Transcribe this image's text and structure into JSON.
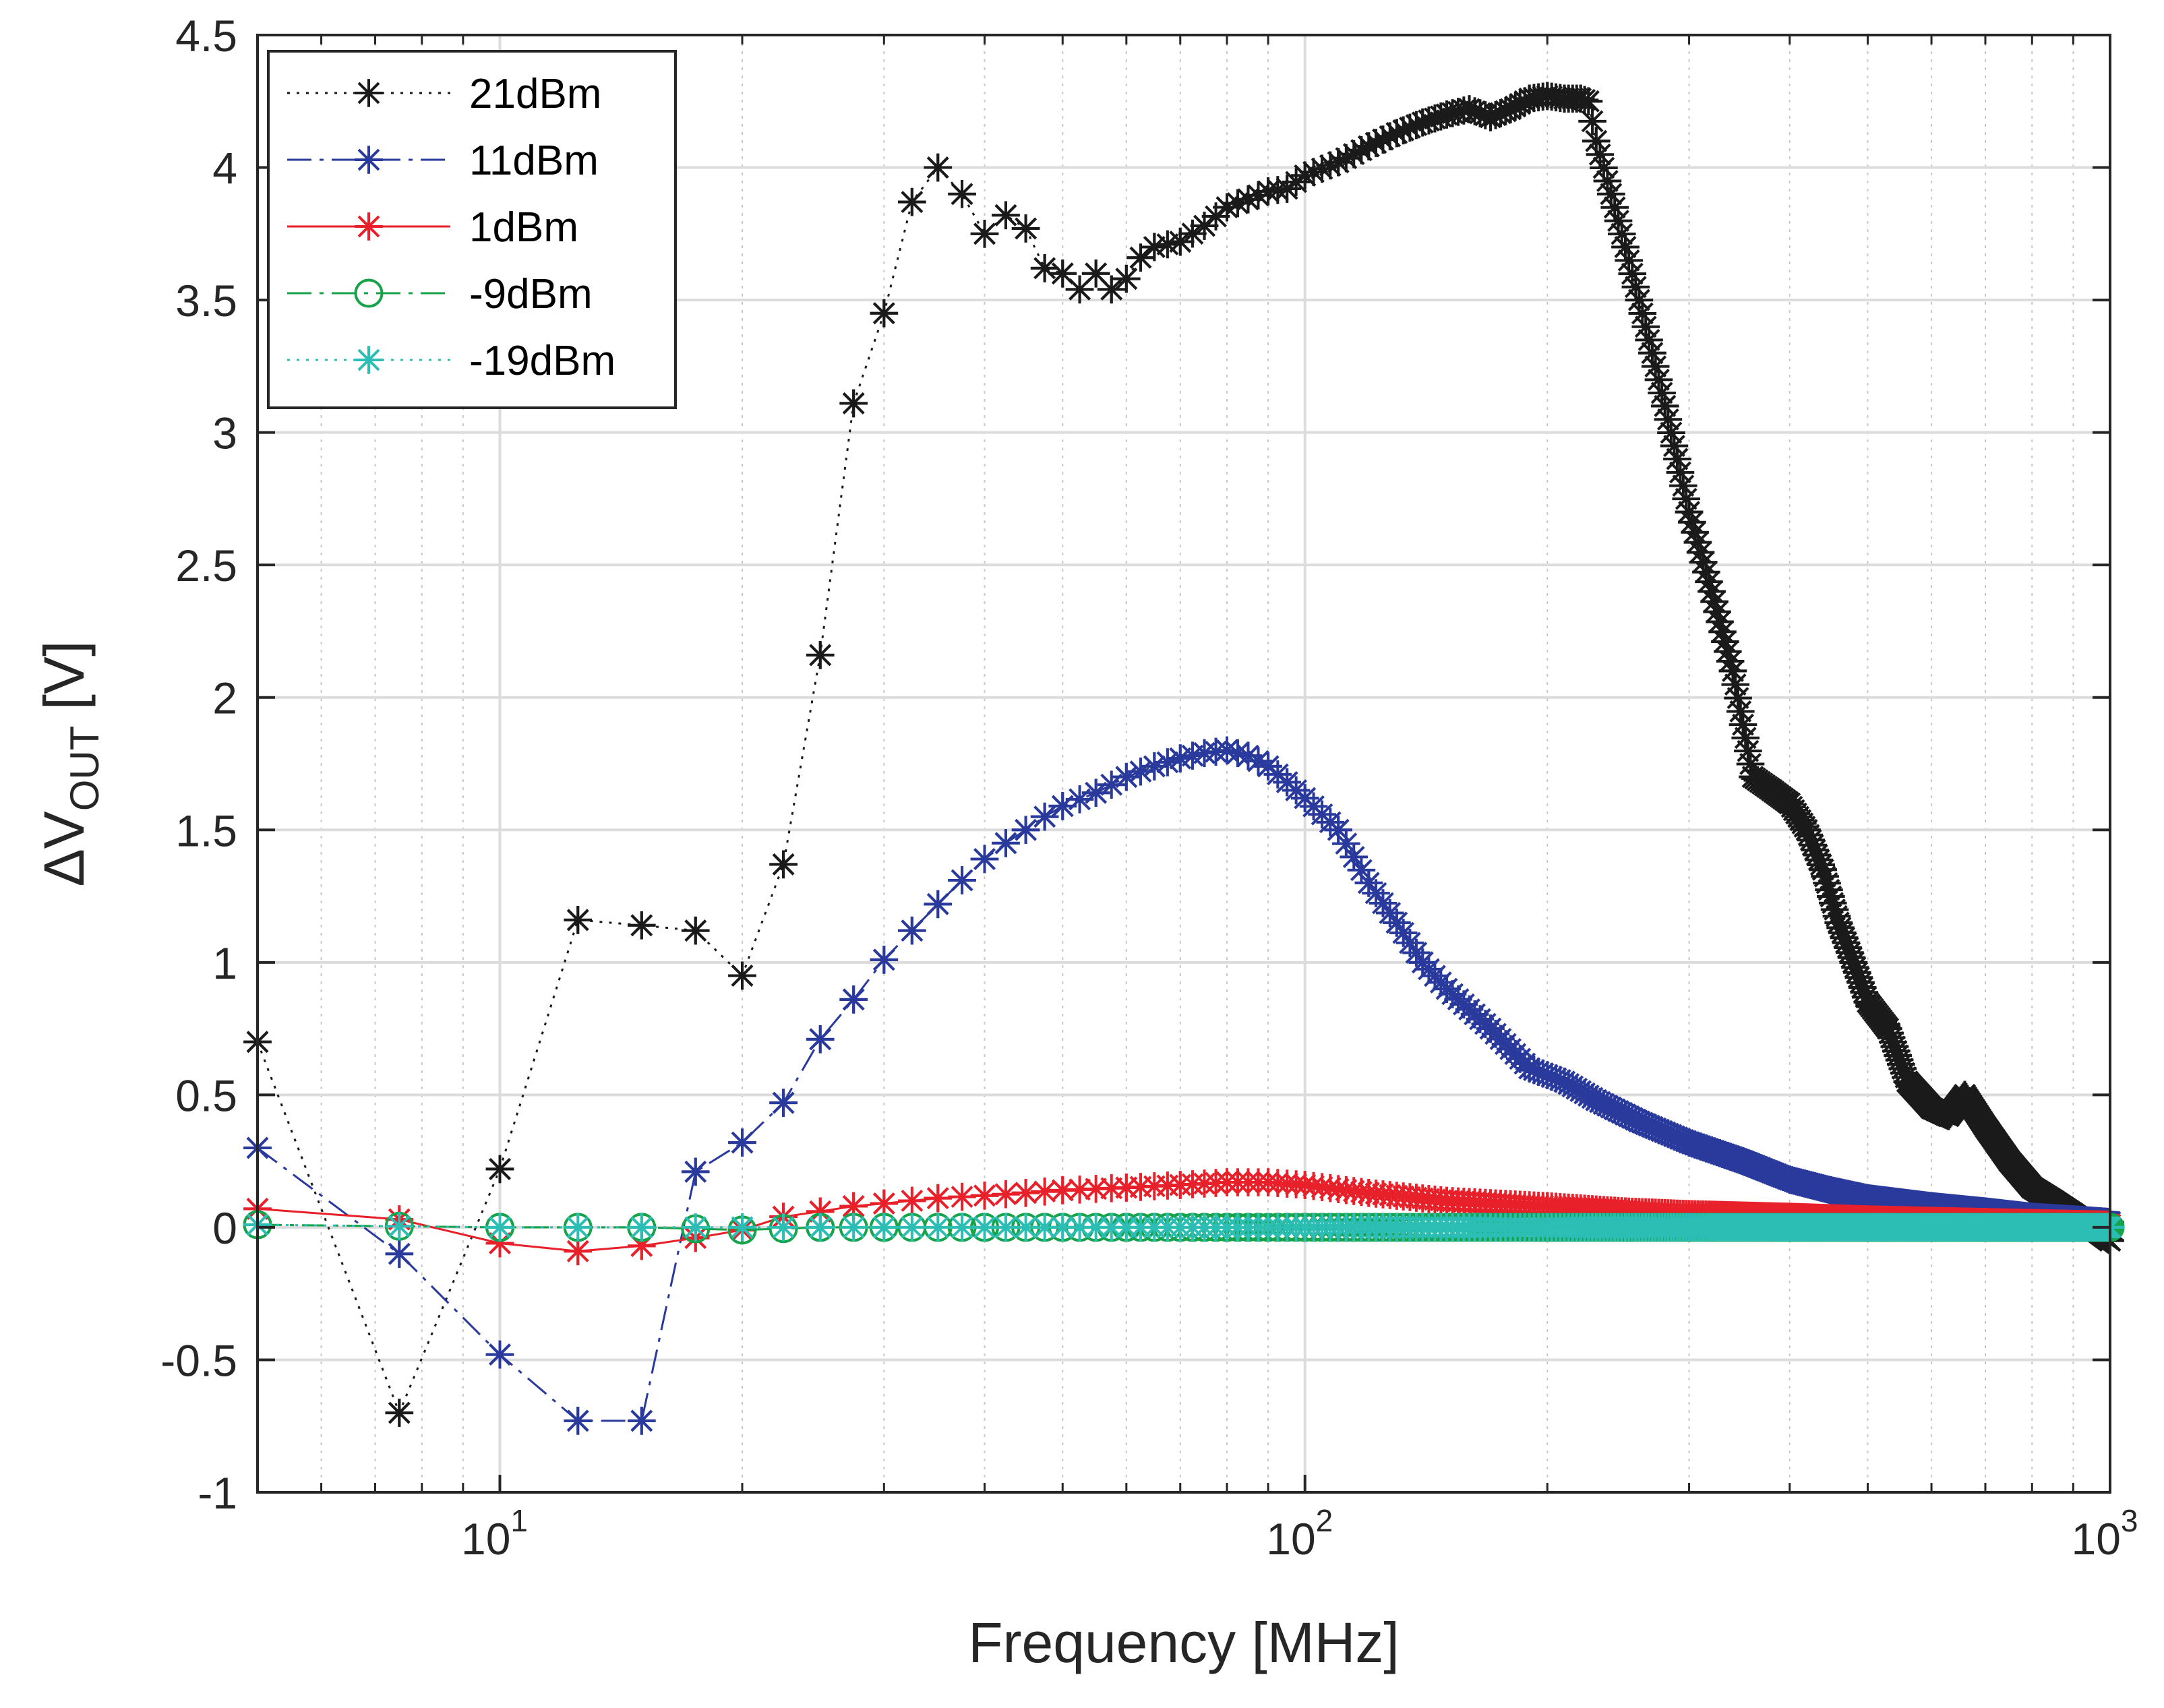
{
  "chart_data": {
    "type": "line",
    "title": "",
    "xlabel": "Frequency [MHz]",
    "ylabel": {
      "prefix": "ΔV",
      "subscript": "OUT",
      "suffix": " [V]"
    },
    "xscale": "log",
    "xlim": [
      5,
      1000
    ],
    "ylim": [
      -1,
      4.5
    ],
    "grid": true,
    "minor_grid": true,
    "legend_location": "top-left",
    "x_ticks": [
      {
        "value": 10,
        "base": "10",
        "exp": "1"
      },
      {
        "value": 100,
        "base": "10",
        "exp": "2"
      },
      {
        "value": 1000,
        "base": "10",
        "exp": "3"
      }
    ],
    "y_ticks": [
      "-1",
      "-0.5",
      "0",
      "0.5",
      "1",
      "1.5",
      "2",
      "2.5",
      "3",
      "3.5",
      "4",
      "4.5"
    ],
    "series": [
      {
        "name": "21dBm",
        "color": "#1a1a1a",
        "line_style": "dotted",
        "marker": "asterisk",
        "points": [
          [
            5,
            0.7
          ],
          [
            7.5,
            -0.7
          ],
          [
            10,
            0.22
          ],
          [
            12.5,
            1.16
          ],
          [
            15,
            1.14
          ],
          [
            17.5,
            1.12
          ],
          [
            20,
            0.95
          ],
          [
            22.5,
            1.37
          ],
          [
            25,
            2.16
          ],
          [
            27.5,
            3.11
          ],
          [
            30,
            3.45
          ],
          [
            32.5,
            3.87
          ],
          [
            35,
            4.0
          ],
          [
            37.5,
            3.9
          ],
          [
            40,
            3.75
          ],
          [
            42.5,
            3.82
          ],
          [
            45,
            3.77
          ],
          [
            47.5,
            3.62
          ],
          [
            50,
            3.6
          ],
          [
            52.5,
            3.54
          ],
          [
            55,
            3.6
          ],
          [
            57.5,
            3.54
          ],
          [
            60,
            3.58
          ],
          [
            62.5,
            3.66
          ],
          [
            65,
            3.7
          ],
          [
            70,
            3.72
          ],
          [
            75,
            3.78
          ],
          [
            80,
            3.85
          ],
          [
            85,
            3.88
          ],
          [
            90,
            3.91
          ],
          [
            95,
            3.92
          ],
          [
            100,
            3.97
          ],
          [
            110,
            4.02
          ],
          [
            120,
            4.08
          ],
          [
            130,
            4.13
          ],
          [
            140,
            4.17
          ],
          [
            150,
            4.2
          ],
          [
            160,
            4.22
          ],
          [
            170,
            4.19
          ],
          [
            180,
            4.22
          ],
          [
            190,
            4.26
          ],
          [
            200,
            4.27
          ],
          [
            210,
            4.26
          ],
          [
            220,
            4.26
          ],
          [
            225,
            4.25
          ],
          [
            230,
            4.1
          ],
          [
            240,
            3.9
          ],
          [
            250,
            3.7
          ],
          [
            260,
            3.5
          ],
          [
            270,
            3.3
          ],
          [
            280,
            3.1
          ],
          [
            290,
            2.9
          ],
          [
            300,
            2.7
          ],
          [
            320,
            2.4
          ],
          [
            340,
            2.1
          ],
          [
            360,
            1.7
          ],
          [
            380,
            1.65
          ],
          [
            400,
            1.6
          ],
          [
            420,
            1.5
          ],
          [
            440,
            1.35
          ],
          [
            460,
            1.15
          ],
          [
            480,
            1.0
          ],
          [
            500,
            0.85
          ],
          [
            530,
            0.75
          ],
          [
            560,
            0.55
          ],
          [
            600,
            0.45
          ],
          [
            630,
            0.42
          ],
          [
            660,
            0.5
          ],
          [
            700,
            0.38
          ],
          [
            750,
            0.25
          ],
          [
            800,
            0.15
          ],
          [
            850,
            0.1
          ],
          [
            900,
            0.05
          ],
          [
            950,
            0.0
          ],
          [
            1000,
            -0.05
          ]
        ]
      },
      {
        "name": "11dBm",
        "color": "#2a3a9c",
        "line_style": "dash-dot",
        "marker": "asterisk",
        "points": [
          [
            5,
            0.3
          ],
          [
            7.5,
            -0.1
          ],
          [
            10,
            -0.48
          ],
          [
            12.5,
            -0.73
          ],
          [
            15,
            -0.73
          ],
          [
            17.5,
            0.21
          ],
          [
            20,
            0.32
          ],
          [
            22.5,
            0.47
          ],
          [
            25,
            0.71
          ],
          [
            27.5,
            0.86
          ],
          [
            30,
            1.01
          ],
          [
            32.5,
            1.12
          ],
          [
            35,
            1.22
          ],
          [
            37.5,
            1.31
          ],
          [
            40,
            1.39
          ],
          [
            42.5,
            1.45
          ],
          [
            45,
            1.5
          ],
          [
            47.5,
            1.55
          ],
          [
            50,
            1.59
          ],
          [
            55,
            1.64
          ],
          [
            60,
            1.7
          ],
          [
            65,
            1.74
          ],
          [
            70,
            1.77
          ],
          [
            75,
            1.79
          ],
          [
            80,
            1.8
          ],
          [
            85,
            1.78
          ],
          [
            90,
            1.74
          ],
          [
            95,
            1.68
          ],
          [
            100,
            1.62
          ],
          [
            110,
            1.5
          ],
          [
            120,
            1.3
          ],
          [
            130,
            1.15
          ],
          [
            140,
            1.0
          ],
          [
            150,
            0.9
          ],
          [
            170,
            0.75
          ],
          [
            190,
            0.6
          ],
          [
            210,
            0.55
          ],
          [
            230,
            0.48
          ],
          [
            260,
            0.4
          ],
          [
            300,
            0.32
          ],
          [
            350,
            0.25
          ],
          [
            400,
            0.18
          ],
          [
            450,
            0.14
          ],
          [
            500,
            0.11
          ],
          [
            600,
            0.08
          ],
          [
            700,
            0.06
          ],
          [
            800,
            0.04
          ],
          [
            900,
            0.03
          ],
          [
            1000,
            0.02
          ]
        ]
      },
      {
        "name": "1dBm",
        "color": "#e8202a",
        "line_style": "solid",
        "marker": "asterisk",
        "points": [
          [
            5,
            0.07
          ],
          [
            7.5,
            0.03
          ],
          [
            10,
            -0.06
          ],
          [
            12.5,
            -0.09
          ],
          [
            15,
            -0.07
          ],
          [
            17.5,
            -0.04
          ],
          [
            20,
            -0.01
          ],
          [
            22.5,
            0.04
          ],
          [
            25,
            0.06
          ],
          [
            27.5,
            0.08
          ],
          [
            30,
            0.09
          ],
          [
            35,
            0.11
          ],
          [
            40,
            0.12
          ],
          [
            45,
            0.13
          ],
          [
            50,
            0.14
          ],
          [
            60,
            0.15
          ],
          [
            70,
            0.16
          ],
          [
            80,
            0.17
          ],
          [
            90,
            0.17
          ],
          [
            100,
            0.16
          ],
          [
            120,
            0.13
          ],
          [
            150,
            0.1
          ],
          [
            200,
            0.08
          ],
          [
            250,
            0.06
          ],
          [
            300,
            0.05
          ],
          [
            400,
            0.04
          ],
          [
            500,
            0.03
          ],
          [
            700,
            0.02
          ],
          [
            1000,
            0.01
          ]
        ]
      },
      {
        "name": "-9dBm",
        "color": "#16a34a",
        "line_style": "dash-dot",
        "marker": "circle",
        "points": [
          [
            5,
            0.01
          ],
          [
            10,
            0.0
          ],
          [
            15,
            0.0
          ],
          [
            20,
            -0.01
          ],
          [
            25,
            0.0
          ],
          [
            30,
            0.0
          ],
          [
            40,
            0.0
          ],
          [
            50,
            0.0
          ],
          [
            60,
            0.0
          ],
          [
            80,
            0.0
          ],
          [
            100,
            0.0
          ],
          [
            150,
            0.0
          ],
          [
            200,
            0.0
          ],
          [
            300,
            0.0
          ],
          [
            500,
            0.0
          ],
          [
            700,
            0.0
          ],
          [
            1000,
            0.0
          ]
        ]
      },
      {
        "name": "-19dBm",
        "color": "#2cbdb4",
        "line_style": "dotted",
        "marker": "asterisk",
        "points": [
          [
            5,
            0.01
          ],
          [
            10,
            0.0
          ],
          [
            15,
            0.0
          ],
          [
            20,
            0.0
          ],
          [
            25,
            0.0
          ],
          [
            30,
            0.0
          ],
          [
            40,
            0.0
          ],
          [
            50,
            0.0
          ],
          [
            60,
            0.0
          ],
          [
            80,
            0.0
          ],
          [
            100,
            0.0
          ],
          [
            150,
            0.0
          ],
          [
            200,
            0.0
          ],
          [
            300,
            0.0
          ],
          [
            500,
            0.0
          ],
          [
            700,
            0.0
          ],
          [
            1000,
            0.0
          ]
        ]
      }
    ]
  }
}
